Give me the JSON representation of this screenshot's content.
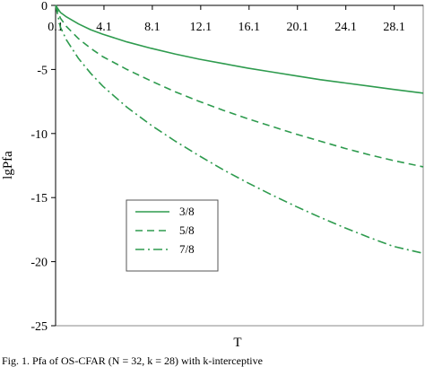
{
  "chart_data": {
    "type": "line",
    "xlabel": "T",
    "ylabel": "lgPfa",
    "xlim": [
      0.1,
      30.5
    ],
    "ylim": [
      -25,
      0
    ],
    "x_ticks": [
      0.1,
      4.1,
      8.1,
      12.1,
      16.1,
      20.1,
      24.1,
      28.1
    ],
    "x_tick_labels": [
      "0.1",
      "4.1",
      "8.1",
      "12.1",
      "16.1",
      "20.1",
      "24.1",
      "28.1"
    ],
    "y_ticks": [
      0,
      -5,
      -10,
      -15,
      -20,
      -25
    ],
    "y_tick_labels": [
      "0",
      "-5",
      "-10",
      "-15",
      "-20",
      "-25"
    ],
    "x_axis_position": "top",
    "grid": false,
    "legend_position": "bottom-left",
    "series": [
      {
        "name": "3/8",
        "style": "solid",
        "color": "#2e9b4e",
        "x": [
          0.1,
          0.5,
          1,
          2,
          3,
          4,
          6,
          8,
          10,
          12,
          14,
          16,
          18,
          20,
          22,
          24,
          26,
          28,
          30.5
        ],
        "y": [
          0,
          -0.55,
          -0.9,
          -1.45,
          -1.9,
          -2.25,
          -2.85,
          -3.35,
          -3.8,
          -4.2,
          -4.55,
          -4.9,
          -5.2,
          -5.5,
          -5.8,
          -6.05,
          -6.3,
          -6.55,
          -6.85
        ]
      },
      {
        "name": "5/8",
        "style": "dashed",
        "color": "#2e9b4e",
        "x": [
          0.1,
          0.5,
          1,
          2,
          3,
          4,
          6,
          8,
          10,
          12,
          14,
          16,
          18,
          20,
          22,
          24,
          26,
          28,
          30.5
        ],
        "y": [
          0,
          -1.0,
          -1.65,
          -2.6,
          -3.35,
          -4.0,
          -5.0,
          -5.9,
          -6.75,
          -7.5,
          -8.2,
          -8.85,
          -9.45,
          -10.05,
          -10.6,
          -11.15,
          -11.65,
          -12.1,
          -12.6
        ]
      },
      {
        "name": "7/8",
        "style": "dashdot",
        "color": "#2e9b4e",
        "x": [
          0.1,
          0.5,
          1,
          2,
          3,
          4,
          6,
          8,
          10,
          12,
          14,
          16,
          18,
          20,
          22,
          24,
          26,
          28,
          30.5
        ],
        "y": [
          0,
          -1.7,
          -2.7,
          -4.15,
          -5.3,
          -6.3,
          -7.95,
          -9.35,
          -10.6,
          -11.75,
          -12.85,
          -13.85,
          -14.8,
          -15.7,
          -16.55,
          -17.35,
          -18.1,
          -18.8,
          -19.35
        ]
      }
    ]
  },
  "caption": "Fig. 1. Pfa of OS-CFAR (N = 32, k = 28) with k-interceptive"
}
